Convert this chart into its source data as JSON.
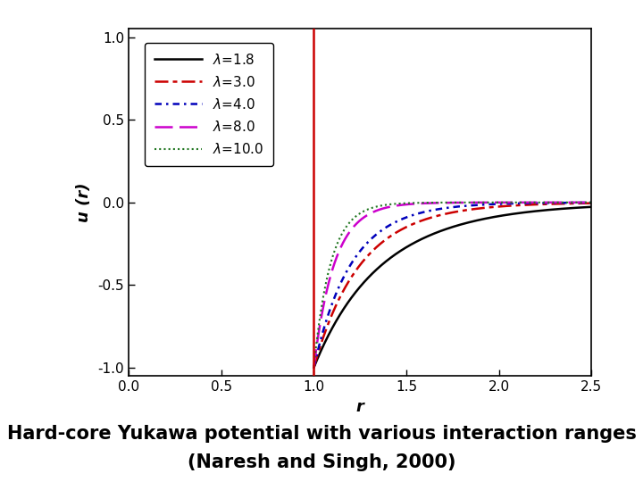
{
  "title_line1": "Hard-core Yukawa potential with various interaction ranges",
  "title_line2": "(Naresh and Singh, 2000)",
  "xlabel": "r",
  "ylabel": "u (r)",
  "xlim": [
    0.0,
    2.5
  ],
  "ylim": [
    -1.05,
    1.05
  ],
  "xticks": [
    0.0,
    0.5,
    1.0,
    1.5,
    2.0,
    2.5
  ],
  "yticks": [
    -1.0,
    -0.5,
    0.0,
    0.5,
    1.0
  ],
  "lambdas": [
    1.8,
    3.0,
    4.0,
    8.0,
    10.0
  ],
  "colors": [
    "black",
    "#cc0000",
    "#0000bb",
    "#cc00cc",
    "#227722"
  ],
  "hard_core_color": "#cc0000",
  "r_hard_core": 1.0,
  "r_start": 1.0005,
  "r_end": 2.5,
  "n_points": 800,
  "background_color": "white",
  "title_fontsize": 15,
  "axis_label_fontsize": 13,
  "tick_fontsize": 11,
  "legend_fontsize": 11
}
